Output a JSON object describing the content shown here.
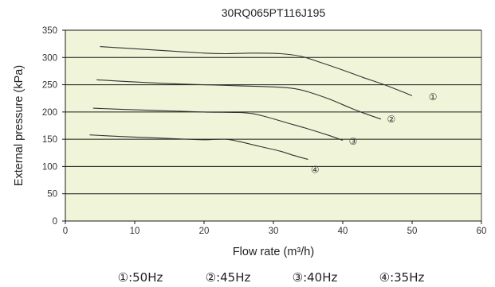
{
  "chart_data": {
    "type": "line",
    "title": "30RQ065PT116J195",
    "xlabel": "Flow rate (m³/h)",
    "ylabel": "External pressure (kPa)",
    "xlim": [
      0,
      60
    ],
    "ylim": [
      0,
      350
    ],
    "x_ticks": [
      "0",
      "10",
      "20",
      "30",
      "40",
      "50",
      "60"
    ],
    "y_ticks": [
      "0",
      "50",
      "100",
      "150",
      "200",
      "250",
      "300",
      "350"
    ],
    "grid": "horizontal",
    "plot_background": "#f0f4d8",
    "line_color": "#333333",
    "series": [
      {
        "label": "①",
        "points": [
          [
            5,
            320
          ],
          [
            10,
            316
          ],
          [
            15,
            312
          ],
          [
            20,
            308
          ],
          [
            23,
            307
          ],
          [
            27,
            308
          ],
          [
            31,
            307
          ],
          [
            34,
            302
          ],
          [
            37,
            290
          ],
          [
            40,
            277
          ],
          [
            43,
            263
          ],
          [
            46,
            250
          ],
          [
            50,
            230
          ]
        ]
      },
      {
        "label": "②",
        "points": [
          [
            4.5,
            259
          ],
          [
            10,
            255
          ],
          [
            15,
            252
          ],
          [
            20,
            250
          ],
          [
            25,
            248
          ],
          [
            30,
            246
          ],
          [
            33,
            243
          ],
          [
            35,
            237
          ],
          [
            38,
            224
          ],
          [
            41,
            208
          ],
          [
            43,
            198
          ],
          [
            45.5,
            187
          ]
        ]
      },
      {
        "label": "③",
        "points": [
          [
            4,
            207
          ],
          [
            10,
            204
          ],
          [
            15,
            202
          ],
          [
            20,
            200
          ],
          [
            25,
            199
          ],
          [
            27,
            197
          ],
          [
            29,
            191
          ],
          [
            32,
            180
          ],
          [
            35,
            169
          ],
          [
            38,
            157
          ],
          [
            40,
            148
          ]
        ]
      },
      {
        "label": "④",
        "points": [
          [
            3.5,
            158
          ],
          [
            8,
            155
          ],
          [
            12,
            153
          ],
          [
            16,
            151
          ],
          [
            20,
            149
          ],
          [
            23,
            150
          ],
          [
            25,
            146
          ],
          [
            28,
            137
          ],
          [
            31,
            128
          ],
          [
            33,
            120
          ],
          [
            35,
            113
          ]
        ]
      }
    ],
    "curve_label_positions": [
      [
        53,
        222
      ],
      [
        47,
        181
      ],
      [
        41.5,
        140
      ],
      [
        36,
        88
      ]
    ],
    "legend": [
      "①:50Hz",
      "②:45Hz",
      "③:40Hz",
      "④:35Hz"
    ]
  }
}
